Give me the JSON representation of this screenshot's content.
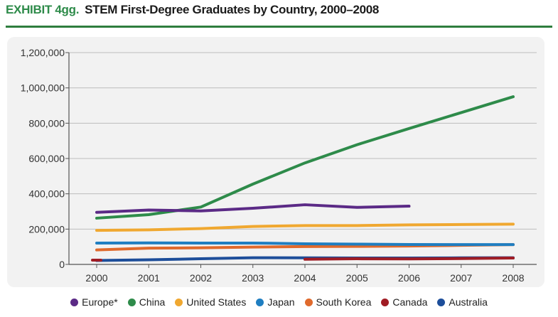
{
  "header": {
    "exhibit": "EXHIBIT 4gg.",
    "title": "STEM First-Degree Graduates by Country, 2000–2008"
  },
  "chart_data": {
    "type": "line",
    "title": "STEM First-Degree Graduates by Country, 2000–2008",
    "xlabel": "",
    "ylabel": "",
    "categories": [
      "2000",
      "2001",
      "2002",
      "2003",
      "2004",
      "2005",
      "2006",
      "2007",
      "2008"
    ],
    "ylim": [
      0,
      1200000
    ],
    "yticks": [
      0,
      200000,
      400000,
      600000,
      800000,
      1000000,
      1200000
    ],
    "ytick_labels": [
      "0",
      "200,000",
      "400,000",
      "600,000",
      "800,000",
      "1,000,000",
      "1,200,000"
    ],
    "grid": "horizontal",
    "legend_position": "bottom",
    "series": [
      {
        "name": "Europe*",
        "color": "#5b2a86",
        "values": [
          295000,
          308000,
          303000,
          318000,
          338000,
          323000,
          330000,
          null,
          null
        ]
      },
      {
        "name": "China",
        "color": "#2e8b4a",
        "values": [
          262000,
          282000,
          325000,
          455000,
          575000,
          678000,
          770000,
          860000,
          950000
        ]
      },
      {
        "name": "United States",
        "color": "#f0a830",
        "values": [
          193000,
          196000,
          203000,
          215000,
          220000,
          220000,
          224000,
          226000,
          228000
        ]
      },
      {
        "name": "Japan",
        "color": "#1f7ec1",
        "values": [
          121000,
          122000,
          121000,
          121000,
          117000,
          115000,
          113000,
          112000,
          112000
        ]
      },
      {
        "name": "South Korea",
        "color": "#e06a2c",
        "values": [
          82000,
          92000,
          94000,
          98000,
          101000,
          102000,
          104000,
          108000,
          112000
        ]
      },
      {
        "name": "Canada",
        "color": "#a01c24",
        "values": [
          24000,
          null,
          null,
          null,
          29000,
          32000,
          31000,
          33000,
          36000
        ]
      },
      {
        "name": "Australia",
        "color": "#1d4e9a",
        "values": [
          22000,
          26000,
          32000,
          38000,
          37000,
          36000,
          36000,
          37000,
          38000
        ]
      }
    ]
  }
}
